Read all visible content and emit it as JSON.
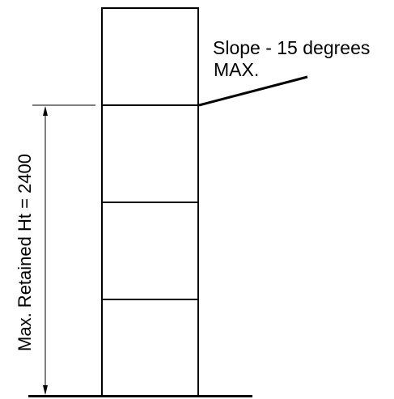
{
  "slope_label": {
    "line1": "Slope - 15 degrees",
    "line2": "MAX."
  },
  "height_dimension_label": "Max. Retained Ht = 2400",
  "colors": {
    "line": "#000000",
    "background": "#ffffff"
  }
}
